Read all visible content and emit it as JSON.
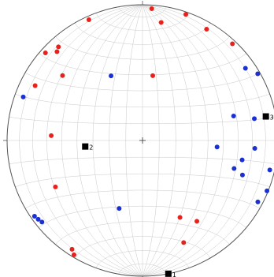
{
  "chart_data": {
    "type": "scatter",
    "title": "",
    "grid": true,
    "colors": {
      "poles": "#e8211c",
      "lineations": "#1a2fd6",
      "principal_axes": "#000000",
      "grid": "#c8c8c8",
      "primitive": "#555555"
    },
    "series": [
      {
        "marker": "circle",
        "color": "#e8211c",
        "points": [
          {
            "trend": 4,
            "plunge": 3
          },
          {
            "trend": 9,
            "plunge": 13
          },
          {
            "trend": 19,
            "plunge": 2
          },
          {
            "trend": 30,
            "plunge": 6
          },
          {
            "trend": 43,
            "plunge": 3
          },
          {
            "trend": 336,
            "plunge": 3
          },
          {
            "trend": 318,
            "plunge": 8
          },
          {
            "trend": 316,
            "plunge": 10
          },
          {
            "trend": 312,
            "plunge": 4
          },
          {
            "trend": 309,
            "plunge": 25
          },
          {
            "trend": 297,
            "plunge": 12
          },
          {
            "trend": 273,
            "plunge": 33
          },
          {
            "trend": 242,
            "plunge": 28
          },
          {
            "trend": 213,
            "plunge": 5
          },
          {
            "trend": 211,
            "plunge": 2
          },
          {
            "trend": 158,
            "plunge": 20
          },
          {
            "trend": 154,
            "plunge": 37
          },
          {
            "trend": 146,
            "plunge": 29
          },
          {
            "trend": 9,
            "plunge": 50
          }
        ]
      },
      {
        "marker": "circle",
        "color": "#1a2fd6",
        "points": [
          {
            "trend": 55,
            "plunge": 8
          },
          {
            "trend": 60,
            "plunge": 2
          },
          {
            "trend": 75,
            "plunge": 31
          },
          {
            "trend": 79,
            "plunge": 17
          },
          {
            "trend": 94,
            "plunge": 18
          },
          {
            "trend": 101,
            "plunge": 26
          },
          {
            "trend": 107,
            "plunge": 30
          },
          {
            "trend": 109,
            "plunge": 23
          },
          {
            "trend": 103,
            "plunge": 4
          },
          {
            "trend": 112,
            "plunge": 1
          },
          {
            "trend": 118,
            "plunge": 4
          },
          {
            "trend": 95,
            "plunge": 44
          },
          {
            "trend": 199,
            "plunge": 46
          },
          {
            "trend": 231,
            "plunge": 5
          },
          {
            "trend": 233,
            "plunge": 4
          },
          {
            "trend": 235,
            "plunge": 3
          },
          {
            "trend": 290,
            "plunge": 7
          },
          {
            "trend": 334,
            "plunge": 46
          }
        ]
      },
      {
        "marker": "square",
        "color": "#000000",
        "points": [
          {
            "trend": 169,
            "plunge": 0,
            "label": "1"
          },
          {
            "trend": 264,
            "plunge": 55,
            "label": "2"
          },
          {
            "trend": 79,
            "plunge": 8,
            "label": "3"
          }
        ]
      }
    ]
  }
}
